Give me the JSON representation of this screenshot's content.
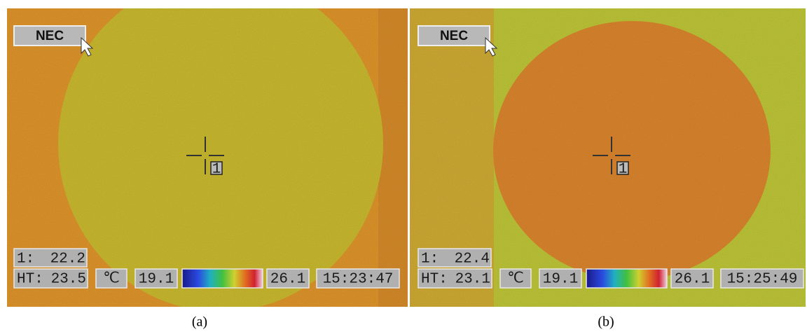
{
  "panels": [
    {
      "logo": "NEC",
      "spot_label": "1:",
      "spot_value": "22.2",
      "ht_label": "HT:",
      "ht_value": "23.5",
      "unit": "℃",
      "range_min": "19.1",
      "range_max": "26.1",
      "time": "15:23:47",
      "marker": "1",
      "caption": "(a)"
    },
    {
      "logo": "NEC",
      "spot_label": "1:",
      "spot_value": "22.4",
      "ht_label": "HT:",
      "ht_value": "23.1",
      "unit": "℃",
      "range_min": "19.1",
      "range_max": "26.1",
      "time": "15:25:49",
      "marker": "1",
      "caption": "(b)"
    }
  ]
}
